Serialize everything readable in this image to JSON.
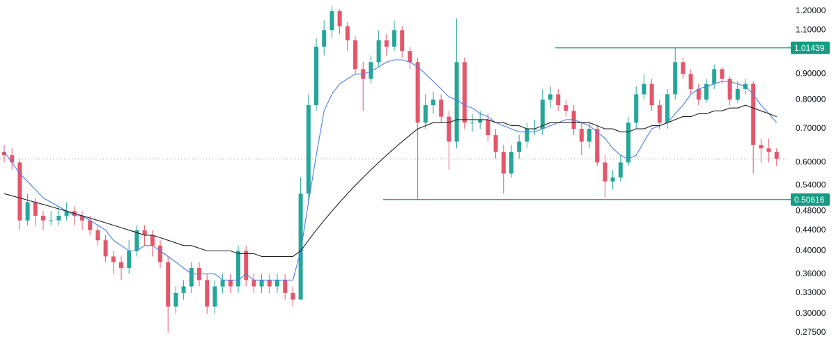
{
  "chart_data": {
    "type": "candlestick",
    "log_scale": true,
    "up_color": "#26a69a",
    "down_color": "#e5566b",
    "level_color": "#159c83",
    "ylim": [
      0.2564,
      1.263
    ],
    "yticks": [
      {
        "value": 1.2,
        "label": "1.20000"
      },
      {
        "value": 1.1,
        "label": "1.10000"
      },
      {
        "value": 0.9,
        "label": "0.90000"
      },
      {
        "value": 0.8,
        "label": "0.80000"
      },
      {
        "value": 0.7,
        "label": "0.70000"
      },
      {
        "value": 0.6,
        "label": "0.60000"
      },
      {
        "value": 0.54,
        "label": "0.54000"
      },
      {
        "value": 0.48,
        "label": "0.48000"
      },
      {
        "value": 0.44,
        "label": "0.44000"
      },
      {
        "value": 0.4,
        "label": "0.40000"
      },
      {
        "value": 0.36,
        "label": "0.36000"
      },
      {
        "value": 0.33,
        "label": "0.33000"
      },
      {
        "value": 0.3,
        "label": "0.30000"
      },
      {
        "value": 0.275,
        "label": "0.27500"
      }
    ],
    "levels": [
      1.01439,
      0.50616
    ],
    "open": [
      0.63,
      0.62,
      0.6,
      0.46,
      0.5,
      0.47,
      0.46,
      0.46,
      0.47,
      0.48,
      0.47,
      0.46,
      0.44,
      0.42,
      0.39,
      0.38,
      0.37,
      0.4,
      0.44,
      0.43,
      0.41,
      0.38,
      0.31,
      0.33,
      0.34,
      0.37,
      0.35,
      0.31,
      0.34,
      0.35,
      0.34,
      0.4,
      0.35,
      0.34,
      0.35,
      0.34,
      0.35,
      0.33,
      0.32,
      0.52,
      0.78,
      1.02,
      1.1,
      1.2,
      1.12,
      1.05,
      0.92,
      0.88,
      0.95,
      1.05,
      1.02,
      1.1,
      1.0,
      0.95,
      0.72,
      0.78,
      0.8,
      0.74,
      0.66,
      0.95,
      0.72,
      0.72,
      0.73,
      0.68,
      0.63,
      0.57,
      0.63,
      0.66,
      0.7,
      0.7,
      0.8,
      0.82,
      0.78,
      0.76,
      0.7,
      0.66,
      0.7,
      0.6,
      0.55,
      0.56,
      0.6,
      0.72,
      0.82,
      0.86,
      0.78,
      0.72,
      0.82,
      0.95,
      0.9,
      0.84,
      0.8,
      0.86,
      0.92,
      0.88,
      0.8,
      0.84,
      0.86,
      0.65,
      0.64,
      0.63
    ],
    "high": [
      0.65,
      0.64,
      0.61,
      0.52,
      0.51,
      0.48,
      0.48,
      0.49,
      0.5,
      0.49,
      0.48,
      0.47,
      0.45,
      0.43,
      0.4,
      0.39,
      0.42,
      0.45,
      0.45,
      0.44,
      0.42,
      0.39,
      0.34,
      0.35,
      0.38,
      0.38,
      0.36,
      0.35,
      0.36,
      0.36,
      0.41,
      0.41,
      0.36,
      0.36,
      0.36,
      0.36,
      0.36,
      0.34,
      0.56,
      0.82,
      1.06,
      1.15,
      1.23,
      1.21,
      1.14,
      1.07,
      0.95,
      0.98,
      1.1,
      1.08,
      1.15,
      1.12,
      1.02,
      0.97,
      0.82,
      0.83,
      0.82,
      0.76,
      1.16,
      0.97,
      0.75,
      0.76,
      0.75,
      0.7,
      0.65,
      0.65,
      0.68,
      0.72,
      0.73,
      0.84,
      0.85,
      0.84,
      0.8,
      0.78,
      0.72,
      0.72,
      0.71,
      0.62,
      0.58,
      0.62,
      0.74,
      0.85,
      0.9,
      0.88,
      0.8,
      0.84,
      1.014,
      0.97,
      0.92,
      0.86,
      0.88,
      0.94,
      0.93,
      0.89,
      0.87,
      0.88,
      0.87,
      0.67,
      0.67,
      0.64
    ],
    "low": [
      0.6,
      0.58,
      0.44,
      0.45,
      0.45,
      0.44,
      0.45,
      0.45,
      0.46,
      0.45,
      0.44,
      0.43,
      0.41,
      0.38,
      0.36,
      0.35,
      0.36,
      0.39,
      0.41,
      0.39,
      0.37,
      0.275,
      0.3,
      0.32,
      0.33,
      0.34,
      0.3,
      0.3,
      0.33,
      0.33,
      0.33,
      0.34,
      0.33,
      0.33,
      0.33,
      0.33,
      0.32,
      0.31,
      0.32,
      0.5,
      0.76,
      0.98,
      1.06,
      1.08,
      1.0,
      0.9,
      0.76,
      0.86,
      0.93,
      0.98,
      1.0,
      0.97,
      0.92,
      0.506,
      0.7,
      0.75,
      0.72,
      0.58,
      0.64,
      0.7,
      0.69,
      0.7,
      0.66,
      0.61,
      0.52,
      0.56,
      0.61,
      0.64,
      0.68,
      0.68,
      0.77,
      0.76,
      0.74,
      0.68,
      0.62,
      0.64,
      0.59,
      0.51,
      0.53,
      0.55,
      0.59,
      0.7,
      0.8,
      0.76,
      0.7,
      0.7,
      0.8,
      0.88,
      0.82,
      0.78,
      0.79,
      0.84,
      0.86,
      0.78,
      0.79,
      0.82,
      0.57,
      0.6,
      0.6,
      0.59
    ],
    "close": [
      0.62,
      0.6,
      0.46,
      0.5,
      0.47,
      0.46,
      0.46,
      0.47,
      0.48,
      0.47,
      0.46,
      0.44,
      0.42,
      0.39,
      0.38,
      0.37,
      0.4,
      0.44,
      0.43,
      0.41,
      0.38,
      0.31,
      0.33,
      0.34,
      0.37,
      0.35,
      0.31,
      0.34,
      0.35,
      0.34,
      0.4,
      0.35,
      0.34,
      0.35,
      0.34,
      0.35,
      0.33,
      0.32,
      0.52,
      0.78,
      1.02,
      1.1,
      1.2,
      1.12,
      1.05,
      0.92,
      0.88,
      0.95,
      1.05,
      1.02,
      1.1,
      1.0,
      0.95,
      0.72,
      0.78,
      0.8,
      0.74,
      0.66,
      0.95,
      0.72,
      0.72,
      0.73,
      0.68,
      0.63,
      0.57,
      0.63,
      0.66,
      0.7,
      0.7,
      0.8,
      0.82,
      0.78,
      0.76,
      0.7,
      0.66,
      0.7,
      0.6,
      0.55,
      0.56,
      0.6,
      0.72,
      0.82,
      0.86,
      0.78,
      0.72,
      0.82,
      0.95,
      0.9,
      0.84,
      0.8,
      0.86,
      0.92,
      0.88,
      0.8,
      0.84,
      0.86,
      0.65,
      0.64,
      0.63,
      0.61
    ],
    "series": [
      {
        "color": "#4a7de8",
        "values": [
          0.63,
          0.6,
          0.57,
          0.55,
          0.53,
          0.51,
          0.5,
          0.49,
          0.48,
          0.47,
          0.47,
          0.46,
          0.45,
          0.44,
          0.42,
          0.41,
          0.4,
          0.4,
          0.41,
          0.41,
          0.4,
          0.39,
          0.38,
          0.37,
          0.36,
          0.36,
          0.36,
          0.36,
          0.35,
          0.35,
          0.35,
          0.36,
          0.35,
          0.35,
          0.35,
          0.35,
          0.35,
          0.35,
          0.4,
          0.5,
          0.62,
          0.76,
          0.82,
          0.86,
          0.88,
          0.9,
          0.9,
          0.91,
          0.93,
          0.95,
          0.96,
          0.96,
          0.95,
          0.93,
          0.9,
          0.87,
          0.84,
          0.81,
          0.8,
          0.78,
          0.77,
          0.75,
          0.74,
          0.72,
          0.71,
          0.7,
          0.69,
          0.69,
          0.69,
          0.7,
          0.71,
          0.72,
          0.73,
          0.73,
          0.72,
          0.71,
          0.69,
          0.67,
          0.64,
          0.62,
          0.61,
          0.62,
          0.66,
          0.7,
          0.71,
          0.72,
          0.75,
          0.78,
          0.82,
          0.84,
          0.85,
          0.86,
          0.87,
          0.87,
          0.86,
          0.85,
          0.82,
          0.78,
          0.75,
          0.72
        ]
      },
      {
        "color": "#1e1e1e",
        "values": [
          0.52,
          0.515,
          0.51,
          0.505,
          0.5,
          0.495,
          0.49,
          0.485,
          0.48,
          0.475,
          0.47,
          0.465,
          0.46,
          0.455,
          0.45,
          0.445,
          0.44,
          0.435,
          0.43,
          0.43,
          0.425,
          0.42,
          0.415,
          0.41,
          0.41,
          0.405,
          0.4,
          0.4,
          0.4,
          0.4,
          0.395,
          0.395,
          0.395,
          0.39,
          0.39,
          0.39,
          0.39,
          0.39,
          0.4,
          0.42,
          0.44,
          0.46,
          0.48,
          0.5,
          0.52,
          0.54,
          0.56,
          0.58,
          0.6,
          0.62,
          0.64,
          0.66,
          0.68,
          0.7,
          0.71,
          0.72,
          0.72,
          0.72,
          0.73,
          0.73,
          0.73,
          0.73,
          0.73,
          0.72,
          0.72,
          0.71,
          0.71,
          0.7,
          0.7,
          0.71,
          0.72,
          0.72,
          0.72,
          0.72,
          0.72,
          0.72,
          0.71,
          0.7,
          0.7,
          0.69,
          0.69,
          0.7,
          0.7,
          0.71,
          0.71,
          0.72,
          0.73,
          0.74,
          0.74,
          0.75,
          0.75,
          0.76,
          0.76,
          0.77,
          0.77,
          0.78,
          0.77,
          0.76,
          0.75,
          0.74
        ]
      }
    ]
  }
}
